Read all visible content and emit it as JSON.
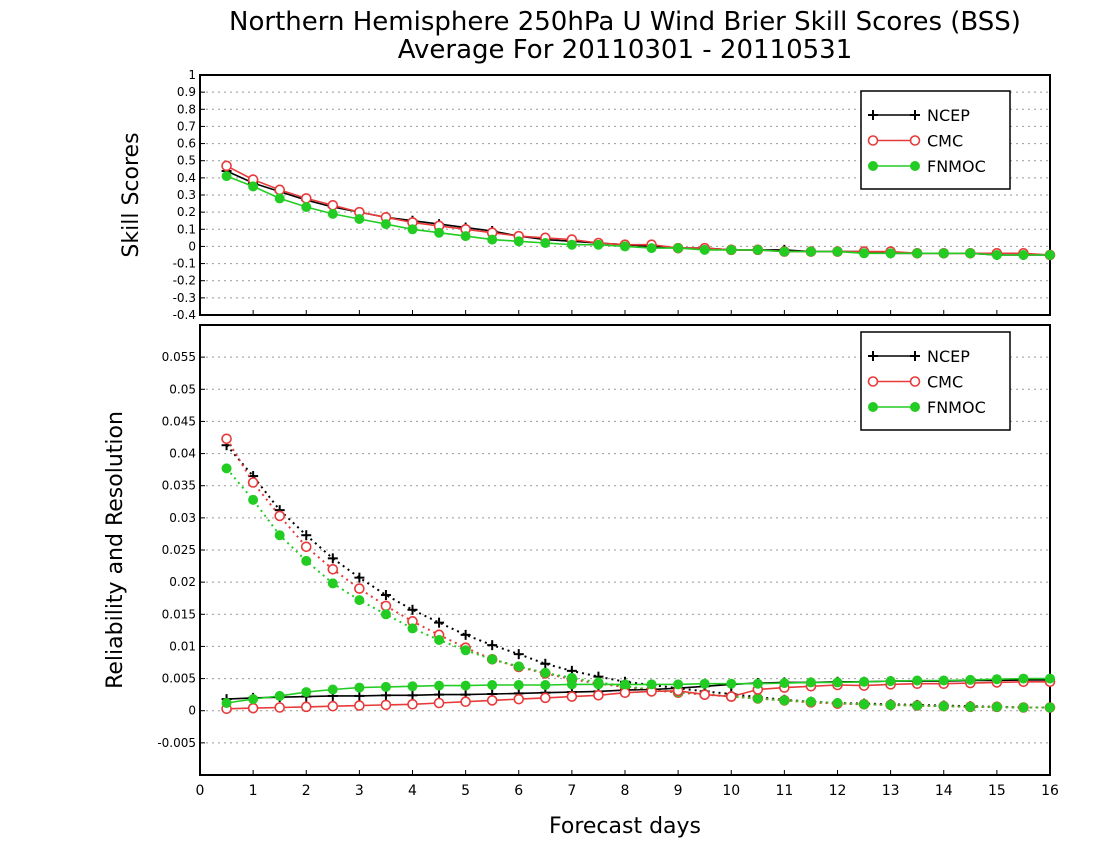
{
  "title_line1": "Northern Hemisphere 250hPa U Wind Brier Skill Scores (BSS)",
  "title_line2": "Average For 20110301 - 20110531",
  "colors": {
    "NCEP": "#000000",
    "CMC": "#e83a3a",
    "FNMOC": "#22cc22"
  },
  "chart_data": [
    {
      "type": "line",
      "panel": "top",
      "ylabel": "Skill Scores",
      "xlabel": "",
      "xlim": [
        0,
        16
      ],
      "ylim": [
        -0.4,
        1
      ],
      "yticks": [
        "1",
        "0.9",
        "0.8",
        "0.7",
        "0.6",
        "0.5",
        "0.4",
        "0.3",
        "0.2",
        "0.1",
        "0",
        "-0.1",
        "-0.2",
        "-0.3",
        "-0.4"
      ],
      "grid": true,
      "legend_position": "top-right",
      "x": [
        0.5,
        1,
        1.5,
        2,
        2.5,
        3,
        3.5,
        4,
        4.5,
        5,
        5.5,
        6,
        6.5,
        7,
        7.5,
        8,
        8.5,
        9,
        9.5,
        10,
        10.5,
        11,
        11.5,
        12,
        12.5,
        13,
        13.5,
        14,
        14.5,
        15,
        15.5,
        16
      ],
      "series": [
        {
          "name": "NCEP",
          "marker": "plus",
          "style": "solid",
          "values": [
            0.44,
            0.37,
            0.32,
            0.27,
            0.23,
            0.2,
            0.17,
            0.15,
            0.13,
            0.11,
            0.09,
            0.06,
            0.04,
            0.03,
            0.02,
            0.01,
            0.0,
            -0.01,
            -0.01,
            -0.02,
            -0.02,
            -0.02,
            -0.03,
            -0.03,
            -0.03,
            -0.04,
            -0.04,
            -0.04,
            -0.04,
            -0.05,
            -0.05,
            -0.05
          ]
        },
        {
          "name": "CMC",
          "marker": "open-circle",
          "style": "solid",
          "values": [
            0.47,
            0.39,
            0.33,
            0.28,
            0.24,
            0.2,
            0.17,
            0.14,
            0.12,
            0.1,
            0.08,
            0.06,
            0.05,
            0.04,
            0.02,
            0.01,
            0.01,
            -0.01,
            -0.01,
            -0.02,
            -0.02,
            -0.03,
            -0.03,
            -0.03,
            -0.03,
            -0.03,
            -0.04,
            -0.04,
            -0.04,
            -0.04,
            -0.04,
            -0.05
          ]
        },
        {
          "name": "FNMOC",
          "marker": "filled-circle",
          "style": "solid",
          "values": [
            0.41,
            0.35,
            0.28,
            0.23,
            0.19,
            0.16,
            0.13,
            0.1,
            0.08,
            0.06,
            0.04,
            0.03,
            0.02,
            0.01,
            0.01,
            0.0,
            -0.01,
            -0.01,
            -0.02,
            -0.02,
            -0.02,
            -0.03,
            -0.03,
            -0.03,
            -0.04,
            -0.04,
            -0.04,
            -0.04,
            -0.04,
            -0.05,
            -0.05,
            -0.05
          ]
        }
      ]
    },
    {
      "type": "line",
      "panel": "bottom",
      "ylabel": "Reliability and Resolution",
      "xlabel": "Forecast days",
      "xlim": [
        0,
        16
      ],
      "ylim": [
        -0.01,
        0.06
      ],
      "yticks": [
        "0.055",
        "0.05",
        "0.045",
        "0.04",
        "0.035",
        "0.03",
        "0.025",
        "0.02",
        "0.015",
        "0.01",
        "0.005",
        "0",
        "-0.005"
      ],
      "xticks": [
        "0",
        "1",
        "2",
        "3",
        "4",
        "5",
        "6",
        "7",
        "8",
        "9",
        "10",
        "11",
        "12",
        "13",
        "14",
        "15",
        "16"
      ],
      "grid": true,
      "legend_position": "top-right",
      "x": [
        0.5,
        1,
        1.5,
        2,
        2.5,
        3,
        3.5,
        4,
        4.5,
        5,
        5.5,
        6,
        6.5,
        7,
        7.5,
        8,
        8.5,
        9,
        9.5,
        10,
        10.5,
        11,
        11.5,
        12,
        12.5,
        13,
        13.5,
        14,
        14.5,
        15,
        15.5,
        16
      ],
      "series": [
        {
          "name": "NCEP",
          "kind": "resolution",
          "marker": "plus",
          "style": "dotted",
          "values": [
            0.0413,
            0.0365,
            0.0312,
            0.0273,
            0.0237,
            0.0207,
            0.018,
            0.0157,
            0.0137,
            0.0118,
            0.0102,
            0.0088,
            0.0073,
            0.0062,
            0.0053,
            0.0045,
            0.004,
            0.0035,
            0.003,
            0.0026,
            0.0021,
            0.0017,
            0.0014,
            0.0012,
            0.0011,
            0.001,
            0.0009,
            0.0008,
            0.0007,
            0.0006,
            0.0005,
            0.0005
          ]
        },
        {
          "name": "CMC",
          "kind": "resolution",
          "marker": "open-circle",
          "style": "dotted",
          "values": [
            0.0423,
            0.0355,
            0.0303,
            0.0255,
            0.022,
            0.019,
            0.0163,
            0.0139,
            0.0118,
            0.0098,
            0.008,
            0.0068,
            0.0058,
            0.0049,
            0.0042,
            0.0037,
            0.0032,
            0.0028,
            0.0025,
            0.0022,
            0.0019,
            0.0016,
            0.0013,
            0.0011,
            0.001,
            0.0009,
            0.0008,
            0.0007,
            0.0006,
            0.0006,
            0.0005,
            0.0005
          ]
        },
        {
          "name": "FNMOC",
          "kind": "resolution",
          "marker": "filled-circle",
          "style": "dotted",
          "values": [
            0.0377,
            0.0328,
            0.0273,
            0.0233,
            0.0198,
            0.0172,
            0.015,
            0.0128,
            0.011,
            0.0094,
            0.008,
            0.0069,
            0.0059,
            0.0051,
            0.0044,
            0.0038,
            0.0033,
            0.0029,
            0.0026,
            0.0022,
            0.0019,
            0.0016,
            0.0014,
            0.0012,
            0.001,
            0.0009,
            0.0008,
            0.0007,
            0.0006,
            0.0006,
            0.0005,
            0.0005
          ]
        },
        {
          "name": "NCEP",
          "kind": "reliability",
          "marker": "plus",
          "style": "solid",
          "values": [
            0.0018,
            0.002,
            0.0021,
            0.0022,
            0.0023,
            0.0023,
            0.0024,
            0.0024,
            0.0025,
            0.0025,
            0.0026,
            0.0027,
            0.0028,
            0.0029,
            0.003,
            0.0032,
            0.0033,
            0.0035,
            0.0038,
            0.0041,
            0.0043,
            0.0044,
            0.0044,
            0.0045,
            0.0045,
            0.0046,
            0.0046,
            0.0046,
            0.0047,
            0.0047,
            0.0048,
            0.0048
          ]
        },
        {
          "name": "CMC",
          "kind": "reliability",
          "marker": "open-circle",
          "style": "solid",
          "values": [
            0.0003,
            0.0004,
            0.0005,
            0.0006,
            0.0007,
            0.0008,
            0.0009,
            0.001,
            0.0012,
            0.0014,
            0.0016,
            0.0018,
            0.002,
            0.0022,
            0.0024,
            0.0028,
            0.003,
            0.0031,
            0.0025,
            0.0022,
            0.0033,
            0.0036,
            0.0038,
            0.004,
            0.0039,
            0.0041,
            0.0042,
            0.0042,
            0.0043,
            0.0044,
            0.0045,
            0.0045
          ]
        },
        {
          "name": "FNMOC",
          "kind": "reliability",
          "marker": "filled-circle",
          "style": "solid",
          "values": [
            0.0012,
            0.0018,
            0.0023,
            0.0029,
            0.0033,
            0.0036,
            0.0037,
            0.0038,
            0.0039,
            0.0039,
            0.004,
            0.004,
            0.004,
            0.0041,
            0.0041,
            0.0041,
            0.0041,
            0.0041,
            0.0042,
            0.0042,
            0.0042,
            0.0043,
            0.0044,
            0.0044,
            0.0045,
            0.0046,
            0.0047,
            0.0047,
            0.0048,
            0.0049,
            0.005,
            0.005
          ]
        }
      ]
    }
  ]
}
